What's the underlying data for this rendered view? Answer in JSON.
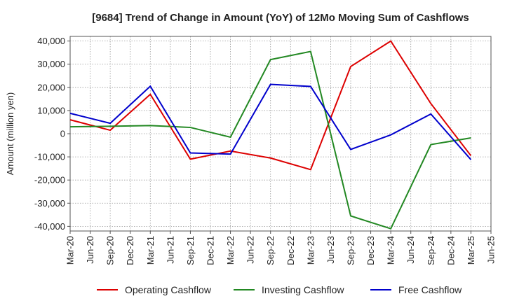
{
  "chart_data": {
    "type": "line",
    "title": "[9684]  Trend of Change in Amount (YoY) of 12Mo Moving Sum of Cashflows",
    "xlabel": "",
    "ylabel": "Amount (million yen)",
    "ylim": [
      -42000,
      42000
    ],
    "yticks": [
      -40000,
      -30000,
      -20000,
      -10000,
      0,
      10000,
      20000,
      30000,
      40000
    ],
    "ytick_labels": [
      "-40,000",
      "-30,000",
      "-20,000",
      "-10,000",
      "0",
      "10,000",
      "20,000",
      "30,000",
      "40,000"
    ],
    "categories": [
      "Mar-20",
      "Jun-20",
      "Sep-20",
      "Dec-20",
      "Mar-21",
      "Jun-21",
      "Sep-21",
      "Dec-21",
      "Mar-22",
      "Jun-22",
      "Sep-22",
      "Dec-22",
      "Mar-23",
      "Jun-23",
      "Sep-23",
      "Dec-23",
      "Mar-24",
      "Jun-24",
      "Sep-24",
      "Dec-24",
      "Mar-25",
      "Jun-25"
    ],
    "grid": true,
    "legend_position": "bottom",
    "series": [
      {
        "name": "Operating Cashflow",
        "color": "#dd0000",
        "values": [
          6000,
          null,
          1500,
          null,
          17000,
          null,
          -11000,
          null,
          -7500,
          null,
          -10500,
          null,
          -15500,
          null,
          29000,
          null,
          40000,
          null,
          13000,
          null,
          -9500,
          null
        ]
      },
      {
        "name": "Investing Cashflow",
        "color": "#228822",
        "values": [
          3000,
          null,
          3200,
          null,
          3500,
          null,
          2700,
          null,
          -1500,
          null,
          32000,
          null,
          35500,
          null,
          -35500,
          null,
          -41000,
          null,
          -4700,
          null,
          -1800,
          null
        ]
      },
      {
        "name": "Free Cashflow",
        "color": "#0000cc",
        "values": [
          8800,
          null,
          4500,
          null,
          20500,
          null,
          -8300,
          null,
          -8800,
          null,
          21300,
          null,
          20400,
          null,
          -6800,
          null,
          -500,
          null,
          8500,
          null,
          -11200,
          null
        ]
      }
    ]
  }
}
